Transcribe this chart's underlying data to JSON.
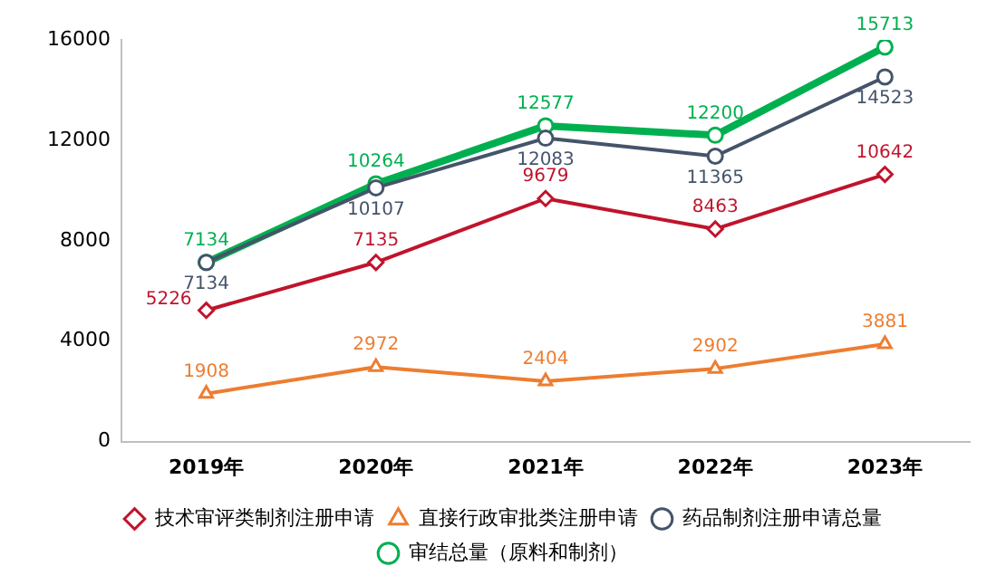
{
  "chart_data": {
    "type": "line",
    "categories": [
      "2019年",
      "2020年",
      "2021年",
      "2022年",
      "2023年"
    ],
    "series": [
      {
        "name": "技术审评类制剂注册申请",
        "color": "#c0142c",
        "marker": "diamond",
        "values": [
          5226,
          7135,
          9679,
          8463,
          10642
        ]
      },
      {
        "name": "直接行政审批类注册申请",
        "color": "#ed7d31",
        "marker": "triangle",
        "values": [
          1908,
          2972,
          2404,
          2902,
          3881
        ]
      },
      {
        "name": "药品制剂注册申请总量",
        "color": "#44546a",
        "marker": "circle",
        "values": [
          7134,
          10107,
          12083,
          11365,
          14523
        ]
      },
      {
        "name": "审结总量（原料和制剂）",
        "color": "#00b050",
        "marker": "circle",
        "values": [
          7134,
          10264,
          12577,
          12200,
          15713
        ]
      }
    ],
    "ylim": [
      0,
      16000
    ],
    "yticks": [
      0,
      4000,
      8000,
      12000,
      16000
    ],
    "grid": false,
    "legend": "bottom",
    "data_labels": true
  }
}
